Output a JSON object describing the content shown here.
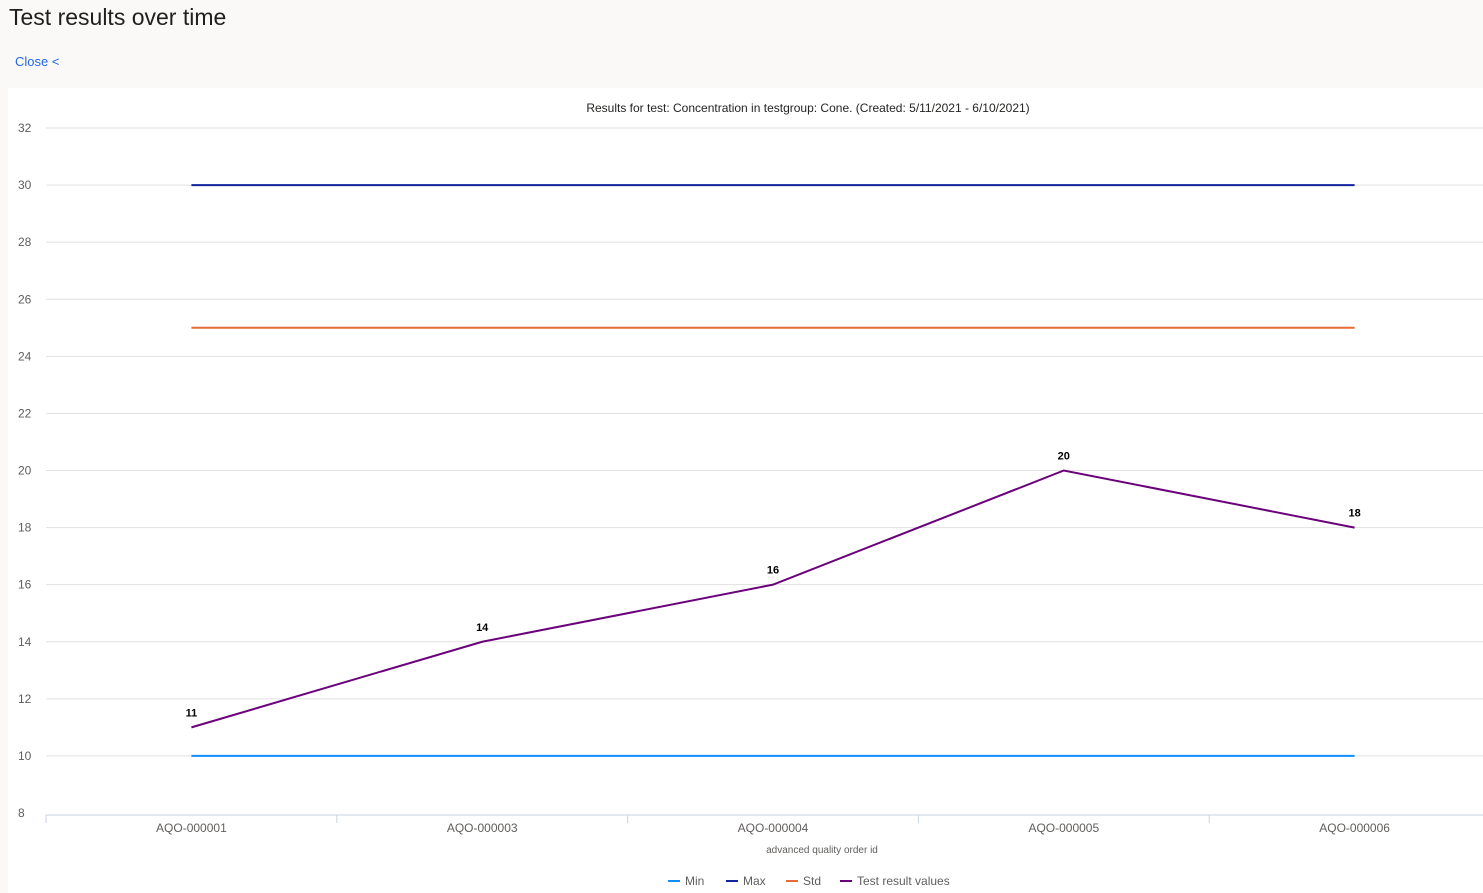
{
  "page": {
    "title": "Test results over time",
    "close_label": "Close <"
  },
  "chart_data": {
    "type": "line",
    "title": "Results for test: Concentration in testgroup: Cone. (Created: 5/11/2021 - 6/10/2021)",
    "xlabel": "advanced quality order id",
    "ylabel": "",
    "categories": [
      "AQO-000001",
      "AQO-000003",
      "AQO-000004",
      "AQO-000005",
      "AQO-000006"
    ],
    "ylim": [
      8,
      32
    ],
    "yticks": [
      8,
      10,
      12,
      14,
      16,
      18,
      20,
      22,
      24,
      26,
      28,
      30,
      32
    ],
    "grid": true,
    "legend": "bottom-center",
    "series": [
      {
        "name": "Min",
        "color": "#118dff",
        "values": [
          10,
          10,
          10,
          10,
          10
        ],
        "labels": false
      },
      {
        "name": "Max",
        "color": "#12239e",
        "values": [
          30,
          30,
          30,
          30,
          30
        ],
        "labels": false
      },
      {
        "name": "Std",
        "color": "#e66c37",
        "values": [
          25,
          25,
          25,
          25,
          25
        ],
        "labels": false
      },
      {
        "name": "Test result values",
        "color": "#6b007b",
        "values": [
          11,
          14,
          16,
          20,
          18
        ],
        "labels": true
      }
    ]
  }
}
